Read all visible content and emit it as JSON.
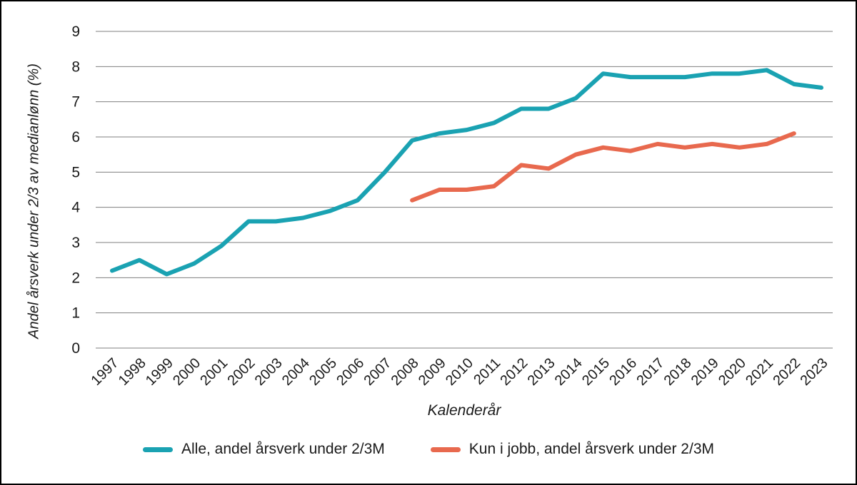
{
  "chart_data": {
    "type": "line",
    "title": "",
    "xlabel": "Kalenderår",
    "ylabel": "Andel årsverk under 2/3 av medianlønn (%)",
    "ylim": [
      0,
      9
    ],
    "yticks": [
      0,
      1,
      2,
      3,
      4,
      5,
      6,
      7,
      8,
      9
    ],
    "grid": true,
    "legend_position": "bottom",
    "x": [
      "1997",
      "1998",
      "1999",
      "2000",
      "2001",
      "2002",
      "2003",
      "2004",
      "2005",
      "2006",
      "2007",
      "2008",
      "2009",
      "2010",
      "2011",
      "2012",
      "2013",
      "2014",
      "2015",
      "2016",
      "2017",
      "2018",
      "2019",
      "2020",
      "2021",
      "2022",
      "2023"
    ],
    "series": [
      {
        "name": "Alle, andel årsverk under 2/3M",
        "color": "#1aa2b2",
        "values": [
          2.2,
          2.5,
          2.1,
          2.4,
          2.9,
          3.6,
          3.6,
          3.7,
          3.9,
          4.2,
          5.0,
          5.9,
          6.1,
          6.2,
          6.4,
          6.8,
          6.8,
          7.1,
          7.8,
          7.7,
          7.7,
          7.7,
          7.8,
          7.8,
          7.9,
          7.5,
          7.4
        ]
      },
      {
        "name": "Kun i jobb, andel årsverk under 2/3M",
        "color": "#e8694e",
        "values": [
          null,
          null,
          null,
          null,
          null,
          null,
          null,
          null,
          null,
          null,
          null,
          4.2,
          4.5,
          4.5,
          4.6,
          5.2,
          5.1,
          5.5,
          5.7,
          5.6,
          5.8,
          5.7,
          5.8,
          5.7,
          5.8,
          6.1,
          null
        ]
      }
    ]
  }
}
